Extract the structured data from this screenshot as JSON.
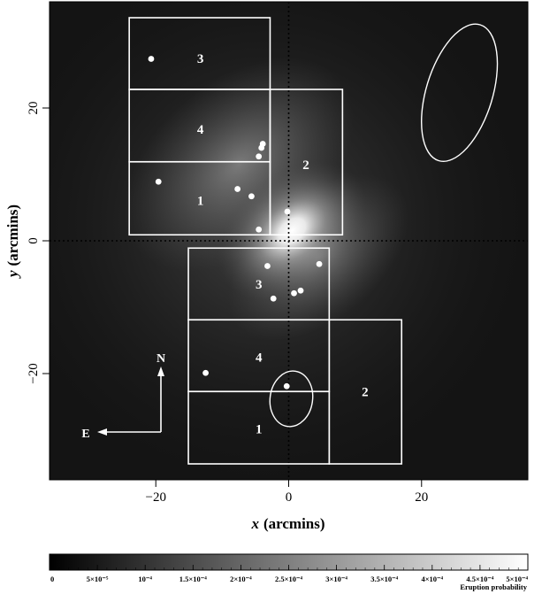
{
  "chart_data": {
    "type": "heatmap",
    "title": "",
    "xlabel": {
      "var": "x",
      "unit": "(arcmins)"
    },
    "ylabel": {
      "var": "y",
      "unit": "(arcmins)"
    },
    "xlim": [
      -36,
      36
    ],
    "ylim": [
      -36,
      36
    ],
    "x_ticks": [
      -20,
      0,
      20
    ],
    "y_ticks": [
      -20,
      0,
      20
    ],
    "x_tick_labels": [
      "−20",
      "0",
      "20"
    ],
    "y_tick_labels": [
      "−20",
      "0",
      "20"
    ],
    "crosshair": {
      "x": 0,
      "y": 0,
      "style": "dotted"
    },
    "heat_peak": {
      "x": 0.5,
      "y": 1.5
    },
    "colorbar": {
      "label": "Eruption probability",
      "min": 0,
      "max": 0.0005,
      "tick_labels": [
        "0",
        "5×10⁻⁵",
        "10⁻⁴",
        "1.5×10⁻⁴",
        "2×10⁻⁴",
        "2.5×10⁻⁴",
        "3×10⁻⁴",
        "3.5×10⁻⁴",
        "4×10⁻⁴",
        "4.5×10⁻⁴",
        "5×10⁻⁴"
      ],
      "tick_values": [
        0,
        5e-05,
        0.0001,
        0.00015,
        0.0002,
        0.00025,
        0.0003,
        0.00035,
        0.0004,
        0.00045,
        0.0005
      ]
    },
    "regions": [
      {
        "label": "3",
        "x0": -24,
        "x1": -2.8,
        "y0": 22.8,
        "y1": 33.6,
        "lx": -13.3,
        "ly": 27.5
      },
      {
        "label": "4",
        "x0": -24,
        "x1": -2.8,
        "y0": 11.9,
        "y1": 22.8,
        "lx": -13.3,
        "ly": 16.8
      },
      {
        "label": "1",
        "x0": -24,
        "x1": -2.8,
        "y0": 0.9,
        "y1": 11.9,
        "lx": -13.3,
        "ly": 6.1
      },
      {
        "label": "2",
        "x0": -2.8,
        "x1": 8.1,
        "y0": 0.9,
        "y1": 22.8,
        "lx": 2.6,
        "ly": 11.5
      },
      {
        "label": "3",
        "x0": -15.1,
        "x1": 6.1,
        "y0": -11.9,
        "y1": -1.1,
        "lx": -4.5,
        "ly": -6.5
      },
      {
        "label": "4",
        "x0": -15.1,
        "x1": 6.1,
        "y0": -22.7,
        "y1": -11.9,
        "lx": -4.5,
        "ly": -17.5
      },
      {
        "label": "1",
        "x0": -15.1,
        "x1": 6.1,
        "y0": -33.6,
        "y1": -22.7,
        "lx": -4.5,
        "ly": -28.3
      },
      {
        "label": "2",
        "x0": 6.1,
        "x1": 17.0,
        "y0": -33.6,
        "y1": -11.9,
        "lx": 11.5,
        "ly": -22.7
      }
    ],
    "vents": [
      {
        "x": -20.7,
        "y": 27.4
      },
      {
        "x": -3.9,
        "y": 14.6
      },
      {
        "x": -4.1,
        "y": 14.0
      },
      {
        "x": -4.5,
        "y": 12.7
      },
      {
        "x": -19.6,
        "y": 8.9
      },
      {
        "x": -7.7,
        "y": 7.8
      },
      {
        "x": -5.6,
        "y": 6.7
      },
      {
        "x": -0.2,
        "y": 4.4
      },
      {
        "x": -4.5,
        "y": 1.7
      },
      {
        "x": -3.2,
        "y": -3.8
      },
      {
        "x": 4.6,
        "y": -3.5
      },
      {
        "x": 0.8,
        "y": -7.9
      },
      {
        "x": 1.8,
        "y": -7.5
      },
      {
        "x": -2.3,
        "y": -8.7
      },
      {
        "x": -12.5,
        "y": -19.9
      },
      {
        "x": -0.3,
        "y": -21.9
      }
    ],
    "ellipses": [
      {
        "cx": 25.7,
        "cy": 22.3,
        "rx": 5.0,
        "ry": 10.7,
        "rotate": 17
      },
      {
        "cx": 0.4,
        "cy": -23.8,
        "rx": 3.2,
        "ry": 4.2,
        "rotate": 8
      }
    ],
    "compass": {
      "north": "N",
      "east": "E"
    }
  }
}
